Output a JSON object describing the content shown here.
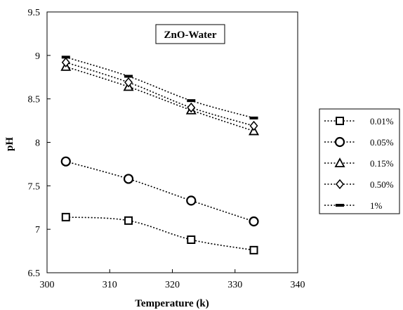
{
  "chart_data": {
    "type": "line",
    "title": "ZnO-Water",
    "xlabel": "Temperature (k)",
    "ylabel": "pH",
    "xlim": [
      300,
      340
    ],
    "ylim": [
      6.5,
      9.5
    ],
    "xticks": [
      "300",
      "310",
      "320",
      "330",
      "340"
    ],
    "yticks": [
      "6.5",
      "7",
      "7.5",
      "8",
      "8.5",
      "9",
      "9.5"
    ],
    "x": [
      303,
      313,
      323,
      333
    ],
    "grid": false,
    "legend_position": "right",
    "line_style": "dotted",
    "color": "#000000",
    "series": [
      {
        "name": "0.01%",
        "marker": "square",
        "values": [
          7.14,
          7.1,
          6.88,
          6.76
        ]
      },
      {
        "name": "0.05%",
        "marker": "circle",
        "values": [
          7.78,
          7.58,
          7.33,
          7.09
        ]
      },
      {
        "name": "0.15%",
        "marker": "triangle",
        "values": [
          8.87,
          8.64,
          8.37,
          8.13
        ]
      },
      {
        "name": "0.50%",
        "marker": "diamond",
        "values": [
          8.92,
          8.69,
          8.4,
          8.19
        ]
      },
      {
        "name": "1%",
        "marker": "dash",
        "values": [
          8.98,
          8.76,
          8.48,
          8.28
        ]
      }
    ]
  }
}
